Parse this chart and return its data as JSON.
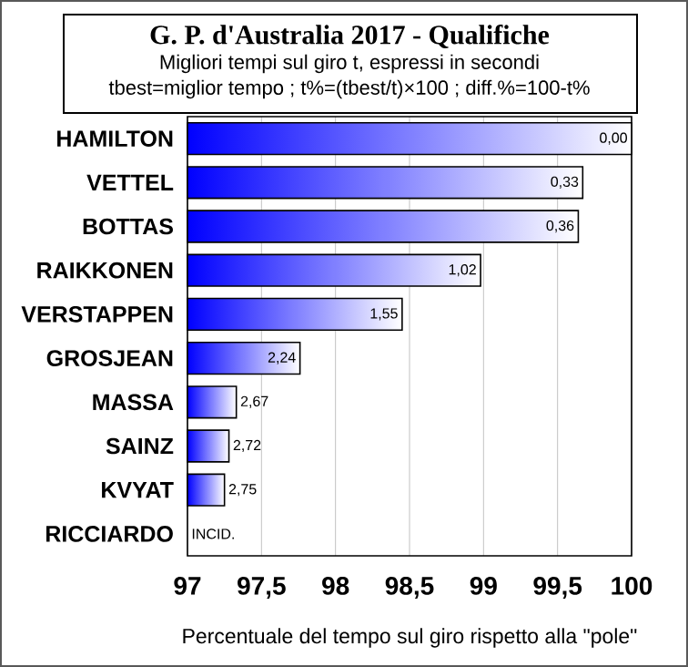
{
  "chart_data": {
    "type": "bar",
    "orientation": "horizontal",
    "title": "G. P. d'Australia 2017 - Qualifiche",
    "subtitle": "Migliori tempi sul giro t, espressi in secondi",
    "xlabel": "Percentuale del tempo sul giro rispetto alla \"pole\"",
    "annotations": [
      "tbest=miglior tempo ; t%=(tbest/t)×100 ; diff.%=100-t%",
      {
        "text": "0,00",
        "x": 100,
        "y": "HAMILTON"
      },
      {
        "text": "0,33",
        "x": 99.67,
        "y": "VETTEL"
      },
      {
        "text": "0,36",
        "x": 99.64,
        "y": "BOTTAS"
      },
      {
        "text": "1,02",
        "x": 98.98,
        "y": "RAIKKONEN"
      },
      {
        "text": "1,55",
        "x": 98.45,
        "y": "VERSTAPPEN"
      },
      {
        "text": "2,24",
        "x": 97.76,
        "y": "GROSJEAN"
      },
      {
        "text": "2,67",
        "x": 97.33,
        "y": "MASSA"
      },
      {
        "text": "2,72",
        "x": 97.28,
        "y": "SAINZ"
      },
      {
        "text": "2,75",
        "x": 97.25,
        "y": "KVYAT"
      },
      "INCID."
    ],
    "categories": [
      "HAMILTON",
      "VETTEL",
      "BOTTAS",
      "RAIKKONEN",
      "VERSTAPPEN",
      "GROSJEAN",
      "MASSA",
      "SAINZ",
      "KVYAT",
      "RICCIARDO"
    ],
    "values": [
      100,
      99.67,
      99.64,
      98.98,
      98.45,
      97.76,
      97.33,
      97.28,
      97.25,
      null
    ],
    "color": "#0000ff",
    "xlim": [
      97,
      100
    ],
    "xticks": [
      97,
      {
        "value": 97.5,
        "label": "97,5"
      },
      98,
      {
        "value": 98.5,
        "label": "98,5"
      },
      99,
      {
        "value": 99.5,
        "label": "99,5"
      },
      100
    ],
    "grid": "x"
  }
}
